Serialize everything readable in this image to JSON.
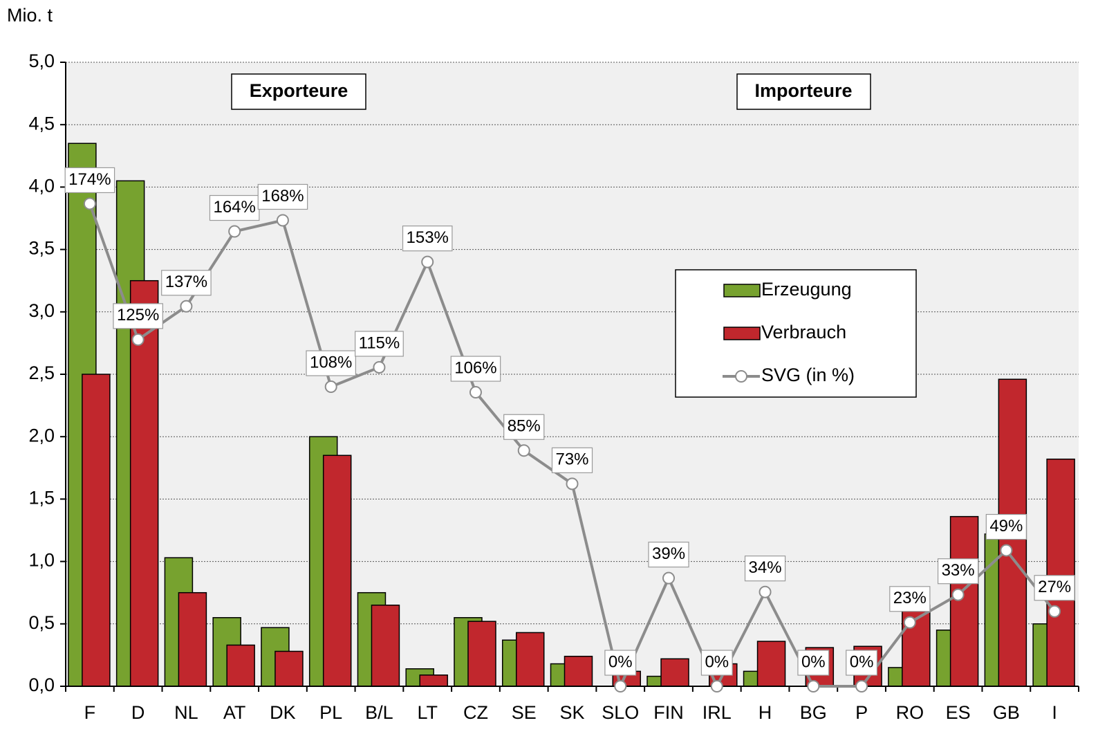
{
  "chart_data": {
    "type": "bar",
    "y_axis_label": "Mio. t",
    "annotations": [
      "Exporteure",
      "Importeure"
    ],
    "categories": [
      "F",
      "D",
      "NL",
      "AT",
      "DK",
      "PL",
      "B/L",
      "LT",
      "CZ",
      "SE",
      "SK",
      "SLO",
      "FIN",
      "IRL",
      "H",
      "BG",
      "P",
      "RO",
      "ES",
      "GB",
      "I"
    ],
    "series": [
      {
        "name": "Erzeugung",
        "type": "bar",
        "color": "#77a22f",
        "values": [
          4.35,
          4.05,
          1.03,
          0.55,
          0.47,
          2.0,
          0.75,
          0.14,
          0.55,
          0.37,
          0.18,
          0,
          0.08,
          0,
          0.12,
          0,
          0,
          0.15,
          0.45,
          1.22,
          0.5
        ]
      },
      {
        "name": "Verbrauch",
        "type": "bar",
        "color": "#c1272d",
        "values": [
          2.5,
          3.25,
          0.75,
          0.33,
          0.28,
          1.85,
          0.65,
          0.09,
          0.52,
          0.43,
          0.24,
          0.12,
          0.22,
          0.18,
          0.36,
          0.31,
          0.32,
          0.65,
          1.36,
          2.46,
          1.82
        ]
      },
      {
        "name": "SVG (in %)",
        "type": "line",
        "axis": "y2",
        "color": "#8c8c8c",
        "values": [
          174,
          125,
          137,
          164,
          168,
          108,
          115,
          153,
          106,
          85,
          73,
          0,
          39,
          0,
          34,
          0,
          0,
          23,
          33,
          49,
          27
        ],
        "value_labels": [
          "174%",
          "125%",
          "137%",
          "164%",
          "168%",
          "108%",
          "115%",
          "153%",
          "106%",
          "85%",
          "73%",
          "0%",
          "39%",
          "0%",
          "34%",
          "0%",
          "0%",
          "23%",
          "33%",
          "49%",
          "27%"
        ]
      }
    ],
    "ylim": [
      0,
      5
    ],
    "yticks": [
      {
        "value": 0,
        "label": "0,0"
      },
      {
        "value": 0.5,
        "label": "0,5"
      },
      {
        "value": 1,
        "label": "1,0"
      },
      {
        "value": 1.5,
        "label": "1,5"
      },
      {
        "value": 2,
        "label": "2,0"
      },
      {
        "value": 2.5,
        "label": "2,5"
      },
      {
        "value": 3,
        "label": "3,0"
      },
      {
        "value": 3.5,
        "label": "3,5"
      },
      {
        "value": 4,
        "label": "4,0"
      },
      {
        "value": 4.5,
        "label": "4,5"
      },
      {
        "value": 5,
        "label": "5,0"
      }
    ],
    "y2lim": [
      0,
      225
    ],
    "grid": true,
    "legend": "right"
  }
}
